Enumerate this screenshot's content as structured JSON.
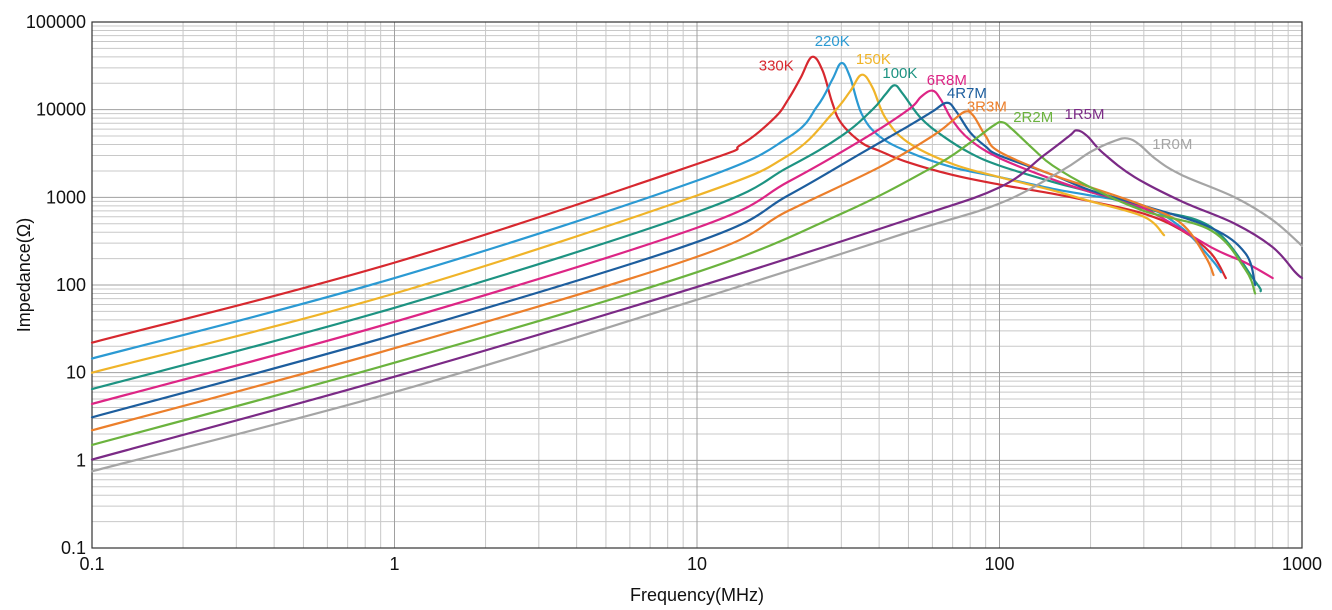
{
  "chart_data": {
    "type": "line",
    "xlabel": "Frequency(MHz)",
    "ylabel": "Impedance(Ω)",
    "xscale": "log",
    "yscale": "log",
    "xlim": [
      0.1,
      1000
    ],
    "ylim": [
      0.1,
      100000
    ],
    "grid": true,
    "x_ticks": [
      0.1,
      1,
      10,
      100,
      1000
    ],
    "x_tick_labels": [
      "0.1",
      "1",
      "10",
      "100",
      "1000"
    ],
    "y_ticks": [
      0.1,
      1,
      10,
      100,
      1000,
      10000,
      100000
    ],
    "y_tick_labels": [
      "0.1",
      "1",
      "10",
      "100",
      "1000",
      "10000",
      "100000"
    ],
    "series": [
      {
        "name": "330K",
        "color": "#d7282f",
        "points": [
          [
            0.1,
            22
          ],
          [
            1,
            180
          ],
          [
            10,
            2400
          ],
          [
            14,
            4000
          ],
          [
            18,
            8000
          ],
          [
            20,
            13000
          ],
          [
            22,
            23000
          ],
          [
            24,
            40000
          ],
          [
            26,
            28000
          ],
          [
            28,
            12000
          ],
          [
            30,
            7000
          ],
          [
            35,
            4200
          ],
          [
            40,
            3400
          ],
          [
            50,
            2500
          ],
          [
            70,
            1800
          ],
          [
            100,
            1400
          ],
          [
            150,
            1100
          ],
          [
            200,
            900
          ],
          [
            300,
            650
          ],
          [
            400,
            420
          ],
          [
            500,
            230
          ],
          [
            560,
            120
          ]
        ]
      },
      {
        "name": "220K",
        "color": "#2b9ad3",
        "points": [
          [
            0.1,
            14.5
          ],
          [
            1,
            120
          ],
          [
            10,
            1550
          ],
          [
            20,
            4800
          ],
          [
            25,
            11000
          ],
          [
            28,
            22000
          ],
          [
            30,
            34000
          ],
          [
            32,
            24000
          ],
          [
            35,
            9000
          ],
          [
            40,
            5000
          ],
          [
            50,
            3300
          ],
          [
            70,
            2200
          ],
          [
            100,
            1700
          ],
          [
            150,
            1250
          ],
          [
            200,
            1050
          ],
          [
            300,
            800
          ],
          [
            400,
            450
          ],
          [
            500,
            200
          ],
          [
            540,
            140
          ]
        ]
      },
      {
        "name": "150K",
        "color": "#f0b429",
        "points": [
          [
            0.1,
            10
          ],
          [
            1,
            80
          ],
          [
            10,
            1050
          ],
          [
            20,
            3000
          ],
          [
            28,
            9000
          ],
          [
            32,
            16000
          ],
          [
            35,
            25000
          ],
          [
            38,
            18000
          ],
          [
            42,
            8000
          ],
          [
            50,
            4200
          ],
          [
            70,
            2400
          ],
          [
            100,
            1700
          ],
          [
            150,
            1200
          ],
          [
            200,
            900
          ],
          [
            300,
            600
          ],
          [
            350,
            370
          ]
        ]
      },
      {
        "name": "100K",
        "color": "#1d9382",
        "points": [
          [
            0.1,
            6.5
          ],
          [
            1,
            55
          ],
          [
            10,
            680
          ],
          [
            20,
            2200
          ],
          [
            30,
            5000
          ],
          [
            38,
            10000
          ],
          [
            42,
            15000
          ],
          [
            45,
            19000
          ],
          [
            48,
            15000
          ],
          [
            55,
            8000
          ],
          [
            65,
            5000
          ],
          [
            80,
            3200
          ],
          [
            100,
            2300
          ],
          [
            150,
            1500
          ],
          [
            200,
            1150
          ],
          [
            300,
            750
          ],
          [
            500,
            460
          ],
          [
            700,
            110
          ],
          [
            730,
            85
          ]
        ]
      },
      {
        "name": "6R8M",
        "color": "#dd2585",
        "points": [
          [
            0.1,
            4.4
          ],
          [
            1,
            38
          ],
          [
            10,
            450
          ],
          [
            20,
            1500
          ],
          [
            35,
            4500
          ],
          [
            50,
            10000
          ],
          [
            55,
            14000
          ],
          [
            60,
            16500
          ],
          [
            64,
            13000
          ],
          [
            70,
            7500
          ],
          [
            80,
            4500
          ],
          [
            100,
            2800
          ],
          [
            150,
            1600
          ],
          [
            200,
            1150
          ],
          [
            300,
            750
          ],
          [
            500,
            270
          ],
          [
            650,
            180
          ],
          [
            800,
            120
          ]
        ]
      },
      {
        "name": "4R7M",
        "color": "#1d5e9e",
        "points": [
          [
            0.1,
            3.1
          ],
          [
            1,
            27
          ],
          [
            10,
            310
          ],
          [
            20,
            1050
          ],
          [
            35,
            3200
          ],
          [
            50,
            6500
          ],
          [
            60,
            9500
          ],
          [
            67,
            12000
          ],
          [
            72,
            9500
          ],
          [
            80,
            5500
          ],
          [
            90,
            3800
          ],
          [
            100,
            3000
          ],
          [
            150,
            1800
          ],
          [
            200,
            1200
          ],
          [
            300,
            800
          ],
          [
            500,
            450
          ],
          [
            650,
            230
          ],
          [
            700,
            100
          ]
        ]
      },
      {
        "name": "3R3M",
        "color": "#ec7f2b",
        "points": [
          [
            0.1,
            2.2
          ],
          [
            1,
            19
          ],
          [
            10,
            210
          ],
          [
            20,
            700
          ],
          [
            40,
            2200
          ],
          [
            60,
            5000
          ],
          [
            70,
            7500
          ],
          [
            77,
            9500
          ],
          [
            82,
            8500
          ],
          [
            90,
            5000
          ],
          [
            100,
            3300
          ],
          [
            150,
            1800
          ],
          [
            200,
            1300
          ],
          [
            300,
            800
          ],
          [
            400,
            500
          ],
          [
            480,
            210
          ],
          [
            510,
            130
          ]
        ]
      },
      {
        "name": "2R2M",
        "color": "#6bb33e",
        "points": [
          [
            0.1,
            1.5
          ],
          [
            1,
            13
          ],
          [
            10,
            140
          ],
          [
            30,
            650
          ],
          [
            60,
            2200
          ],
          [
            80,
            4200
          ],
          [
            95,
            6500
          ],
          [
            102,
            7200
          ],
          [
            110,
            6000
          ],
          [
            130,
            3500
          ],
          [
            150,
            2300
          ],
          [
            200,
            1300
          ],
          [
            300,
            700
          ],
          [
            500,
            420
          ],
          [
            650,
            150
          ],
          [
            700,
            80
          ]
        ]
      },
      {
        "name": "1R5M",
        "color": "#7b2a86",
        "points": [
          [
            0.1,
            1.02
          ],
          [
            1,
            9
          ],
          [
            10,
            95
          ],
          [
            50,
            560
          ],
          [
            100,
            1300
          ],
          [
            140,
            3000
          ],
          [
            170,
            5000
          ],
          [
            180,
            5800
          ],
          [
            195,
            5000
          ],
          [
            220,
            3200
          ],
          [
            280,
            1700
          ],
          [
            400,
            900
          ],
          [
            600,
            500
          ],
          [
            800,
            270
          ],
          [
            950,
            140
          ],
          [
            1000,
            120
          ]
        ]
      },
      {
        "name": "1R0M",
        "color": "#a5a5a5",
        "points": [
          [
            0.1,
            0.75
          ],
          [
            1,
            6
          ],
          [
            10,
            68
          ],
          [
            50,
            400
          ],
          [
            100,
            850
          ],
          [
            160,
            2000
          ],
          [
            200,
            3300
          ],
          [
            240,
            4400
          ],
          [
            265,
            4700
          ],
          [
            290,
            4000
          ],
          [
            330,
            2700
          ],
          [
            400,
            1800
          ],
          [
            600,
            1000
          ],
          [
            800,
            550
          ],
          [
            1000,
            280
          ]
        ]
      }
    ],
    "annotations": [
      {
        "text": "330K",
        "x": 16,
        "y": 28000
      },
      {
        "text": "220K",
        "x": 24.5,
        "y": 53000
      },
      {
        "text": "150K",
        "x": 33.5,
        "y": 33000
      },
      {
        "text": "100K",
        "x": 41,
        "y": 23000
      },
      {
        "text": "6R8M",
        "x": 57.5,
        "y": 19000
      },
      {
        "text": "4R7M",
        "x": 67,
        "y": 13500
      },
      {
        "text": "3R3M",
        "x": 78,
        "y": 9500
      },
      {
        "text": "2R2M",
        "x": 111,
        "y": 7200
      },
      {
        "text": "1R5M",
        "x": 164,
        "y": 7800
      },
      {
        "text": "1R0M",
        "x": 320,
        "y": 3550
      }
    ]
  }
}
